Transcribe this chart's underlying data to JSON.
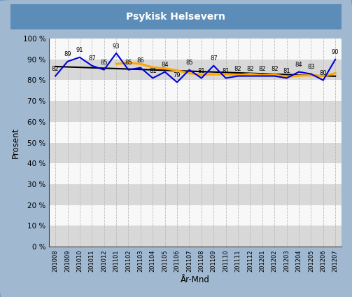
{
  "title": "Psykisk Helsevern",
  "xlabel": "År-Mnd",
  "ylabel": "Prosent",
  "categories": [
    "201008",
    "201009",
    "201010",
    "201011",
    "201012",
    "201101",
    "201102",
    "201103",
    "201104",
    "201105",
    "201106",
    "201107",
    "201108",
    "201109",
    "201110",
    "201111",
    "201112",
    "201201",
    "201202",
    "201203",
    "201204",
    "201205",
    "201206",
    "201207"
  ],
  "blue_values": [
    82,
    89,
    91,
    87,
    85,
    93,
    85,
    86,
    81,
    84,
    79,
    85,
    81,
    87,
    81,
    82,
    82,
    82,
    82,
    81,
    84,
    83,
    80,
    90
  ],
  "ylim": [
    0,
    100
  ],
  "yticks": [
    0,
    10,
    20,
    30,
    40,
    50,
    60,
    70,
    80,
    90,
    100
  ],
  "bg_outer": "#a0b8d0",
  "bg_plot": "#f0f0f0",
  "title_bg_top": "#5b8db8",
  "title_bg_bot": "#4070a0",
  "title_color": "#ffffff",
  "blue_line_color": "#0000dd",
  "orange_line_color": "#ffa500",
  "black_trend_color": "#000000",
  "grid_color": "#bbbbbb",
  "stripe_gray": "#d8d8d8",
  "stripe_white": "#f8f8f8",
  "label_color": "#000000",
  "orange_window": 6
}
